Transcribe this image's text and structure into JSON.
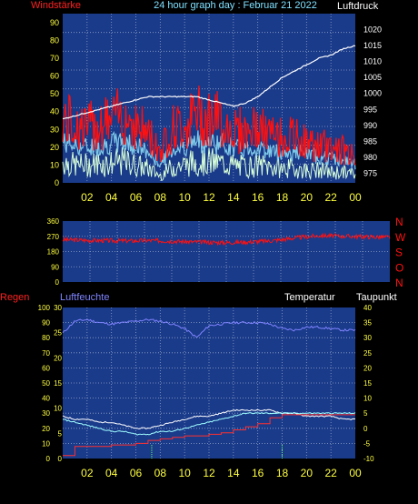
{
  "header": {
    "left_label": "Windstärke",
    "center_title": "24 hour graph day : Februar 21 2022",
    "right_label": "Luftdruck"
  },
  "colors": {
    "background": "#000000",
    "plot_bg": "#1a3a8a",
    "grid": "#8fa3c8",
    "wind": "#ff1010",
    "gust_band": "#7ec8e8",
    "wind_light": "#d8ffd8",
    "pressure": "#ffffff",
    "axis_yellow": "#ffff40",
    "title_cyan": "#7fe0ff",
    "humidity": "#7f84ff",
    "rain": "#ff3030",
    "temperature": "#ffffff",
    "dewpoint": "#a0ffff"
  },
  "x_tick_labels": [
    "02",
    "04",
    "06",
    "08",
    "10",
    "12",
    "14",
    "16",
    "18",
    "20",
    "22",
    "00"
  ],
  "chart_data": [
    {
      "type": "line",
      "name": "wind-pressure",
      "xlabel": "",
      "y_left_label": "Windstärke",
      "y_right_label": "Luftdruck",
      "ylim_left": [
        0,
        95
      ],
      "ylim_right": [
        972,
        1025
      ],
      "y_left_ticks": [
        "0",
        "10",
        "20",
        "30",
        "40",
        "50",
        "60",
        "70",
        "80",
        "90"
      ],
      "y_right_ticks": [
        "975",
        "980",
        "985",
        "990",
        "995",
        "1000",
        "1005",
        "1010",
        "1015",
        "1020"
      ],
      "x_hours": [
        0,
        1,
        2,
        3,
        4,
        5,
        6,
        7,
        8,
        9,
        10,
        11,
        12,
        13,
        14,
        15,
        16,
        17,
        18,
        19,
        20,
        21,
        22,
        23,
        24
      ],
      "series": [
        {
          "axis": "right",
          "values": [
            992,
            993,
            994,
            995,
            996,
            997,
            998,
            999,
            999,
            999,
            999,
            999,
            998,
            997,
            996,
            997,
            999,
            1002,
            1005,
            1007,
            1009,
            1011,
            1012,
            1014,
            1015
          ]
        },
        {
          "axis": "left",
          "values": [
            35,
            32,
            30,
            33,
            34,
            38,
            32,
            27,
            18,
            30,
            32,
            38,
            36,
            34,
            30,
            28,
            30,
            26,
            25,
            25,
            22,
            20,
            20,
            18,
            14
          ]
        },
        {
          "axis": "left",
          "values": [
            22,
            20,
            19,
            20,
            21,
            22,
            20,
            16,
            10,
            18,
            20,
            22,
            22,
            21,
            19,
            18,
            19,
            17,
            16,
            16,
            15,
            14,
            13,
            12,
            10
          ]
        },
        {
          "axis": "left",
          "values": [
            12,
            10,
            10,
            11,
            11,
            12,
            10,
            8,
            4,
            9,
            10,
            12,
            12,
            11,
            10,
            9,
            10,
            9,
            8,
            8,
            7,
            7,
            6,
            6,
            5
          ]
        }
      ]
    },
    {
      "type": "line",
      "name": "wind-direction",
      "ylim": [
        0,
        360
      ],
      "y_ticks": [
        "0",
        "90",
        "180",
        "270",
        "360"
      ],
      "right_labels": [
        "N",
        "W",
        "S",
        "O",
        "N"
      ],
      "x_hours": [
        0,
        1,
        2,
        3,
        4,
        5,
        6,
        7,
        8,
        9,
        10,
        11,
        12,
        13,
        14,
        15,
        16,
        17,
        18,
        19,
        20,
        21,
        22,
        23,
        24
      ],
      "values": [
        250,
        248,
        246,
        245,
        244,
        243,
        245,
        244,
        242,
        238,
        236,
        234,
        233,
        235,
        238,
        242,
        250,
        260,
        268,
        275,
        272,
        270,
        268,
        266,
        265
      ]
    },
    {
      "type": "line",
      "name": "humidity-rain-temperature",
      "left_outer_label": "Regen",
      "left_inner_label": "Luftfeuchte",
      "right_inner_label": "Temperatur",
      "right_outer_label": "Taupunkt",
      "rain_ticks": [
        "0",
        "10",
        "20",
        "30",
        "40",
        "50",
        "60",
        "70",
        "80",
        "90",
        "100"
      ],
      "humidity_ticks": [
        "0",
        "5",
        "10",
        "15",
        "20",
        "25",
        "30"
      ],
      "temp_ticks": [
        "-10",
        "-5",
        "0",
        "5",
        "10",
        "15",
        "20",
        "25",
        "30",
        "35",
        "40"
      ],
      "x_hours": [
        0,
        1,
        2,
        3,
        4,
        5,
        6,
        7,
        8,
        9,
        10,
        11,
        12,
        13,
        14,
        15,
        16,
        17,
        18,
        19,
        20,
        21,
        22,
        23,
        24
      ],
      "series": [
        {
          "name": "Luftfeuchte",
          "axis": "left",
          "ylim": [
            0,
            100
          ],
          "values": [
            83,
            91,
            92,
            90,
            89,
            90,
            91,
            92,
            91,
            89,
            86,
            80,
            88,
            89,
            90,
            90,
            90,
            89,
            86,
            85,
            87,
            87,
            86,
            85,
            85
          ]
        },
        {
          "name": "Regen",
          "axis": "left",
          "ylim": [
            0,
            100
          ],
          "values": [
            2,
            8,
            8,
            8,
            9,
            9,
            10,
            12,
            13,
            14,
            15,
            15,
            16,
            17,
            19,
            21,
            23,
            27,
            29,
            29,
            29,
            29,
            29,
            29,
            29
          ]
        },
        {
          "name": "Temperatur",
          "axis": "right",
          "ylim": [
            -10,
            40
          ],
          "values": [
            4,
            3,
            3,
            2,
            2,
            1,
            0,
            0,
            1,
            2,
            3,
            4,
            4,
            5,
            6,
            6,
            6,
            6,
            5,
            5,
            4,
            4,
            4,
            3,
            3
          ]
        },
        {
          "name": "Taupunkt",
          "axis": "right",
          "ylim": [
            -10,
            40
          ],
          "values": [
            3,
            2,
            1,
            0,
            -1,
            -1,
            -2,
            -2,
            -1,
            -1,
            0,
            1,
            2,
            3,
            4,
            5,
            5,
            5,
            5,
            5,
            5,
            5,
            5,
            5,
            5
          ]
        }
      ]
    }
  ]
}
